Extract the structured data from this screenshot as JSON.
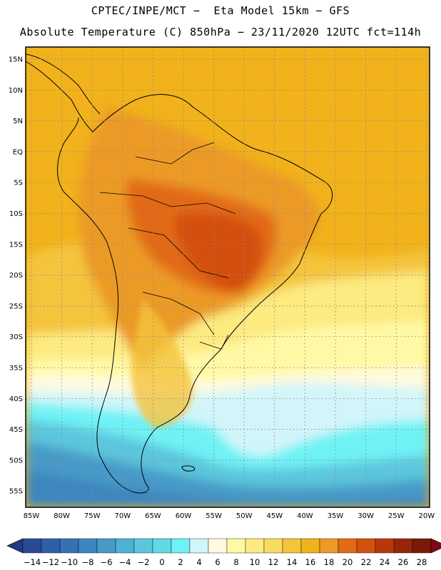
{
  "header": {
    "title_line1": "CPTEC/INPE/MCT −  Eta Model 15km − GFS",
    "title_line2": "Absolute Temperature (C) 850hPa − 23/11/2020 12UTC fct=114h"
  },
  "map": {
    "lat_labels": [
      "15N",
      "10N",
      "5N",
      "EQ",
      "5S",
      "10S",
      "15S",
      "20S",
      "25S",
      "30S",
      "35S",
      "40S",
      "45S",
      "50S",
      "55S"
    ],
    "lon_labels": [
      "85W",
      "80W",
      "75W",
      "70W",
      "65W",
      "60W",
      "55W",
      "50W",
      "45W",
      "40W",
      "35W",
      "30W",
      "25W",
      "20W"
    ]
  },
  "colorbar": {
    "labels": [
      "-14",
      "-12",
      "-10",
      "-8",
      "-6",
      "-4",
      "-2",
      "0",
      "2",
      "4",
      "6",
      "8",
      "10",
      "12",
      "14",
      "16",
      "18",
      "20",
      "22",
      "24",
      "26",
      "28"
    ],
    "colors": [
      "#2a4a96",
      "#2f5fa8",
      "#3572b4",
      "#3d86bf",
      "#479ac8",
      "#4fb1d2",
      "#5cc6dc",
      "#5fd9e4",
      "#6ff2f5",
      "#d2f5fa",
      "#fefae0",
      "#fff9a6",
      "#fdea80",
      "#f9db60",
      "#f4c43c",
      "#f1b21b",
      "#ec9a25",
      "#e26b14",
      "#d4500f",
      "#b9380a",
      "#962607",
      "#7a1a06"
    ],
    "low_arrow_color": "#1f3a80",
    "high_arrow_color": "#7a0a18"
  }
}
